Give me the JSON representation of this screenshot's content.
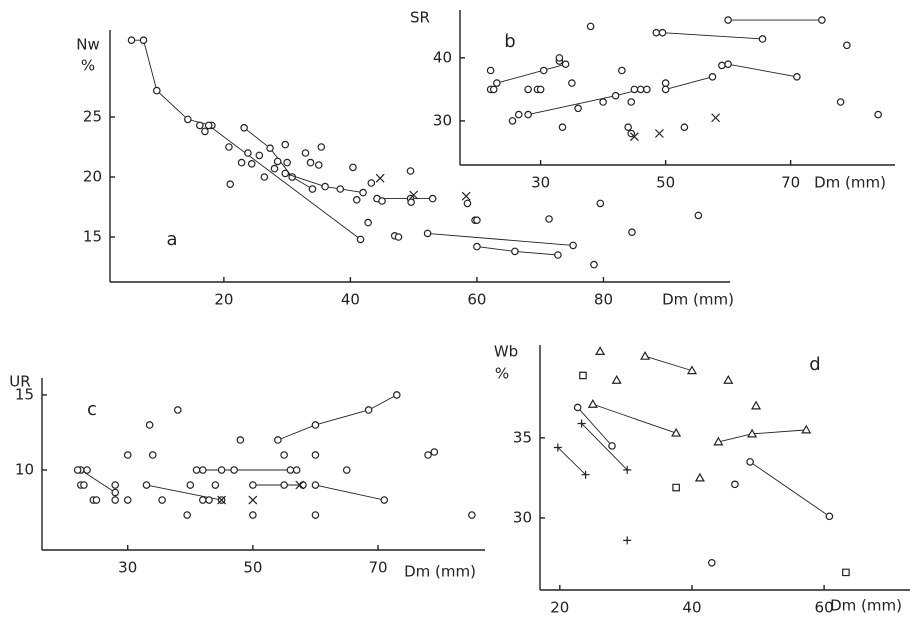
{
  "chart_data": [
    {
      "type": "scatter",
      "label": "a",
      "ylabel": [
        "Nw",
        "%"
      ],
      "xlabel": "Dm (mm)",
      "color": "#222",
      "xlim": [
        2,
        100
      ],
      "ylim": [
        11.25,
        32.25
      ],
      "xticks": [
        20,
        40,
        60,
        80
      ],
      "yticks": [
        15,
        20,
        25
      ],
      "series": [
        {
          "marker": "circle",
          "line": true,
          "x": [
            5.4,
            7.3,
            9.4,
            14.3,
            18.1
          ],
          "values": [
            31.4,
            31.4,
            27.2,
            24.8,
            24.3
          ]
        },
        {
          "marker": "circle",
          "line": true,
          "x": [
            17.6,
            41.6
          ],
          "values": [
            24.3,
            14.8
          ]
        },
        {
          "marker": "circle",
          "line": true,
          "x": [
            23.2,
            27.3,
            30.8,
            34
          ],
          "values": [
            24.1,
            22.4,
            20,
            19
          ]
        },
        {
          "marker": "circle",
          "line": true,
          "x": [
            29.7,
            36,
            42
          ],
          "values": [
            20.3,
            19.2,
            18.7
          ]
        },
        {
          "marker": "circle",
          "line": true,
          "x": [
            44.2,
            49.5,
            53
          ],
          "values": [
            18.2,
            18.2,
            18.2
          ]
        },
        {
          "marker": "circle",
          "line": true,
          "x": [
            52.2,
            75.2
          ],
          "values": [
            15.3,
            14.3
          ]
        },
        {
          "marker": "circle",
          "line": true,
          "x": [
            60,
            66,
            72.8
          ],
          "values": [
            14.2,
            13.8,
            13.5
          ]
        },
        {
          "marker": "circle",
          "x": [
            16.2,
            17,
            20.8,
            22.8,
            23.8,
            24.4,
            25.6,
            26.4,
            21,
            28,
            28.5,
            29.7,
            30,
            32.9,
            33.7,
            35.4,
            35,
            40.4,
            38.4,
            41,
            43.3,
            49.5,
            45,
            49.6,
            59.7,
            60,
            71.4,
            79.5,
            95,
            47,
            47.6,
            78.5,
            84.5,
            58.5,
            42.8
          ],
          "values": [
            24.3,
            23.8,
            22.5,
            21.2,
            22,
            21.1,
            21.8,
            20,
            19.4,
            20.7,
            21.3,
            22.7,
            21.2,
            22,
            21.2,
            22.5,
            21,
            20.8,
            19,
            18.1,
            19.5,
            20.5,
            18,
            17.9,
            16.4,
            16.4,
            16.5,
            17.8,
            16.8,
            15.1,
            15,
            12.7,
            15.4,
            17.8,
            16.2
          ]
        },
        {
          "marker": "x",
          "x": [
            44.7,
            50,
            58.3
          ],
          "values": [
            19.9,
            18.5,
            18.4
          ]
        }
      ]
    },
    {
      "type": "scatter",
      "label": "b",
      "ylabel": [
        "SR"
      ],
      "xlabel": "Dm (mm)",
      "color": "#222",
      "xlim": [
        17.1,
        86.7
      ],
      "ylim": [
        23,
        47.6
      ],
      "xticks": [
        30,
        50,
        70
      ],
      "yticks": [
        30,
        40
      ],
      "series": [
        {
          "marker": "circle",
          "line": true,
          "x": [
            23,
            34
          ],
          "values": [
            36,
            39
          ]
        },
        {
          "marker": "circle",
          "line": true,
          "x": [
            28,
            42,
            46
          ],
          "values": [
            31,
            34,
            35
          ]
        },
        {
          "marker": "circle",
          "line": true,
          "x": [
            48.5,
            49.5,
            65.5
          ],
          "values": [
            44,
            44,
            43
          ]
        },
        {
          "marker": "circle",
          "line": true,
          "x": [
            60,
            75
          ],
          "values": [
            46,
            46
          ]
        },
        {
          "marker": "circle",
          "line": true,
          "x": [
            50,
            57.5
          ],
          "values": [
            35,
            37
          ]
        },
        {
          "marker": "circle",
          "line": true,
          "x": [
            59,
            60,
            71
          ],
          "values": [
            38.8,
            39,
            37
          ]
        },
        {
          "marker": "circle",
          "x": [
            22,
            22.5,
            22,
            25.5,
            26.5,
            28,
            29.5,
            30,
            30.5,
            33,
            33,
            33.5,
            35,
            36,
            38,
            40,
            43,
            44,
            44.5,
            45,
            47,
            50,
            53,
            78,
            79,
            84,
            44.5
          ],
          "values": [
            35,
            35,
            38,
            30,
            31,
            35,
            35,
            35,
            38,
            39.5,
            40,
            29,
            36,
            32,
            45,
            33,
            38,
            29,
            33,
            35,
            35,
            36,
            29,
            33,
            42,
            31,
            28
          ]
        },
        {
          "marker": "x",
          "x": [
            45,
            49,
            58
          ],
          "values": [
            27.5,
            28,
            30.5
          ]
        }
      ]
    },
    {
      "type": "scatter",
      "label": "c",
      "ylabel": [
        "UR"
      ],
      "xlabel": "Dm (mm)",
      "color": "#222",
      "xlim": [
        16.3,
        87.1
      ],
      "ylim": [
        4.67,
        16.13
      ],
      "xticks": [
        30,
        50,
        70
      ],
      "yticks": [
        10,
        15
      ],
      "series": [
        {
          "marker": "circle",
          "line": true,
          "x": [
            22.5,
            28
          ],
          "values": [
            10,
            8.5
          ]
        },
        {
          "marker": "circle",
          "line": true,
          "x": [
            42,
            56
          ],
          "values": [
            10,
            10
          ]
        },
        {
          "marker": "circle",
          "line": true,
          "x": [
            50,
            58
          ],
          "values": [
            9,
            9
          ]
        },
        {
          "marker": "circle",
          "line": true,
          "x": [
            54,
            60,
            68.5,
            73
          ],
          "values": [
            12,
            13,
            14,
            15
          ]
        },
        {
          "marker": "circle",
          "line": true,
          "x": [
            60,
            71
          ],
          "values": [
            9,
            8
          ]
        },
        {
          "marker": "circle",
          "line": true,
          "x": [
            33,
            45
          ],
          "values": [
            9,
            8
          ]
        },
        {
          "marker": "circle",
          "x": [
            22,
            22.5,
            23,
            23.5,
            24.5,
            25,
            28,
            28,
            30,
            30,
            33.5,
            34,
            35.5,
            38,
            39.5,
            40,
            41,
            42,
            43,
            44,
            45,
            47,
            48,
            50,
            55,
            55,
            57,
            60,
            60,
            65,
            78,
            79,
            85
          ],
          "values": [
            10,
            9,
            9,
            10,
            8,
            8,
            9,
            8,
            8,
            11,
            13,
            11,
            8,
            14,
            7,
            9,
            10,
            8,
            8,
            9,
            10,
            10,
            12,
            7,
            9,
            11,
            10,
            11,
            7,
            10,
            11,
            11.2,
            7
          ]
        },
        {
          "marker": "x",
          "x": [
            45,
            50,
            57.5
          ],
          "values": [
            8,
            8,
            9
          ]
        }
      ]
    },
    {
      "type": "scatter",
      "label": "d",
      "ylabel": [
        "Wb",
        "%"
      ],
      "xlabel": "Dm (mm)",
      "color": "#222",
      "xlim": [
        17,
        73
      ],
      "ylim": [
        25.5,
        40.8
      ],
      "xticks": [
        20,
        40,
        60
      ],
      "yticks": [
        30,
        35
      ],
      "series": [
        {
          "marker": "circle",
          "line": true,
          "x": [
            22.7,
            27.9
          ],
          "values": [
            36.9,
            34.5
          ]
        },
        {
          "marker": "circle",
          "line": true,
          "x": [
            48.8,
            60.8
          ],
          "values": [
            33.5,
            30.1
          ]
        },
        {
          "marker": "circle",
          "x": [
            46.5,
            43
          ],
          "values": [
            32.1,
            27.2
          ]
        },
        {
          "marker": "triangle",
          "line": true,
          "x": [
            32.9,
            40
          ],
          "values": [
            40.1,
            39.2
          ]
        },
        {
          "marker": "triangle",
          "line": true,
          "x": [
            25,
            37.6
          ],
          "values": [
            37.1,
            35.3
          ]
        },
        {
          "marker": "triangle",
          "line": true,
          "x": [
            44,
            49.1,
            57.3
          ],
          "values": [
            34.75,
            35.25,
            35.5
          ]
        },
        {
          "marker": "triangle",
          "x": [
            26.1,
            28.6,
            45.5,
            49.7,
            41.2
          ],
          "values": [
            40.4,
            38.6,
            38.6,
            37,
            32.5
          ]
        },
        {
          "marker": "square",
          "x": [
            23.5,
            37.6,
            63.3
          ],
          "values": [
            38.9,
            31.9,
            26.6
          ]
        },
        {
          "marker": "plus",
          "line": true,
          "x": [
            19.7,
            23.9
          ],
          "values": [
            34.4,
            32.7
          ]
        },
        {
          "marker": "plus",
          "line": true,
          "x": [
            23.3,
            30.2
          ],
          "values": [
            35.9,
            33
          ]
        },
        {
          "marker": "plus",
          "x": [
            30.2
          ],
          "values": [
            28.6
          ]
        }
      ]
    }
  ]
}
